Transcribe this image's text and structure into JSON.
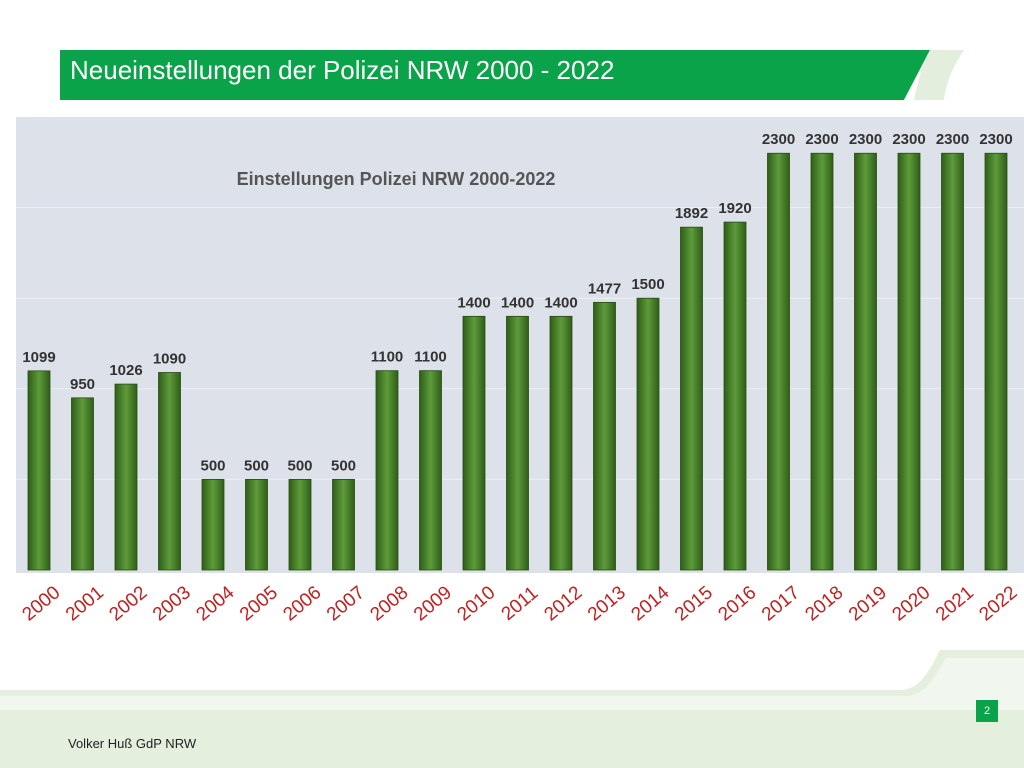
{
  "slide": {
    "title": "Neueinstellungen der Polizei NRW 2000 - 2022",
    "footer": "Volker Huß GdP NRW",
    "page_number": "2",
    "accent_color": "#0aa34a",
    "bar_color": "#4d8a2c",
    "tick_color": "#c02020"
  },
  "chart_data": {
    "type": "bar",
    "title": "Einstellungen Polizei NRW 2000-2022",
    "xlabel": "",
    "ylabel": "",
    "ylim": [
      0,
      2500
    ],
    "grid": true,
    "legend": "none",
    "categories": [
      "2000",
      "2001",
      "2002",
      "2003",
      "2004",
      "2005",
      "2006",
      "2007",
      "2008",
      "2009",
      "2010",
      "2011",
      "2012",
      "2013",
      "2014",
      "2015",
      "2016",
      "2017",
      "2018",
      "2019",
      "2020",
      "2021",
      "2022"
    ],
    "values": [
      1099,
      950,
      1026,
      1090,
      500,
      500,
      500,
      500,
      1100,
      1100,
      1400,
      1400,
      1400,
      1477,
      1500,
      1892,
      1920,
      2300,
      2300,
      2300,
      2300,
      2300,
      2300
    ]
  }
}
